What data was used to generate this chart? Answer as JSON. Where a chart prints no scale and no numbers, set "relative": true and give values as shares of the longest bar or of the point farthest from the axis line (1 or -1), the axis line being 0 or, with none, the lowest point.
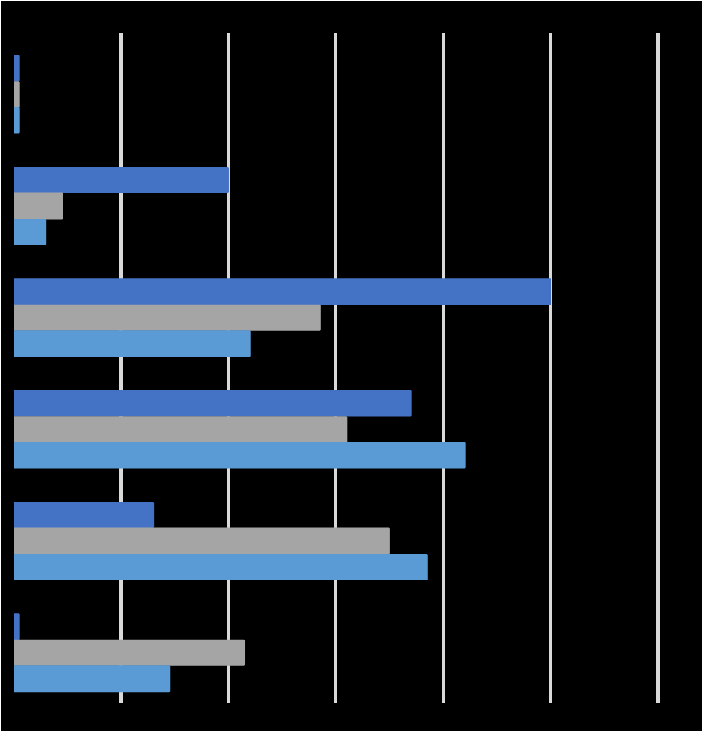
{
  "chart_data": {
    "type": "bar",
    "orientation": "horizontal",
    "relative": true,
    "grid": "x",
    "tick_labels": false,
    "categories": [
      null,
      null,
      null,
      null,
      null,
      null
    ],
    "series": [
      {
        "color": "#4472c4",
        "values": [
          0.01,
          0.4,
          1,
          0.74,
          0.26,
          0.01
        ]
      },
      {
        "color": "#a5a5a5",
        "values": [
          0.01,
          0.09,
          0.57,
          0.62,
          0.7,
          0.43
        ]
      },
      {
        "color": "#5b9bd5",
        "values": [
          0.01,
          0.06,
          0.44,
          0.84,
          0.77,
          0.29
        ]
      }
    ]
  }
}
